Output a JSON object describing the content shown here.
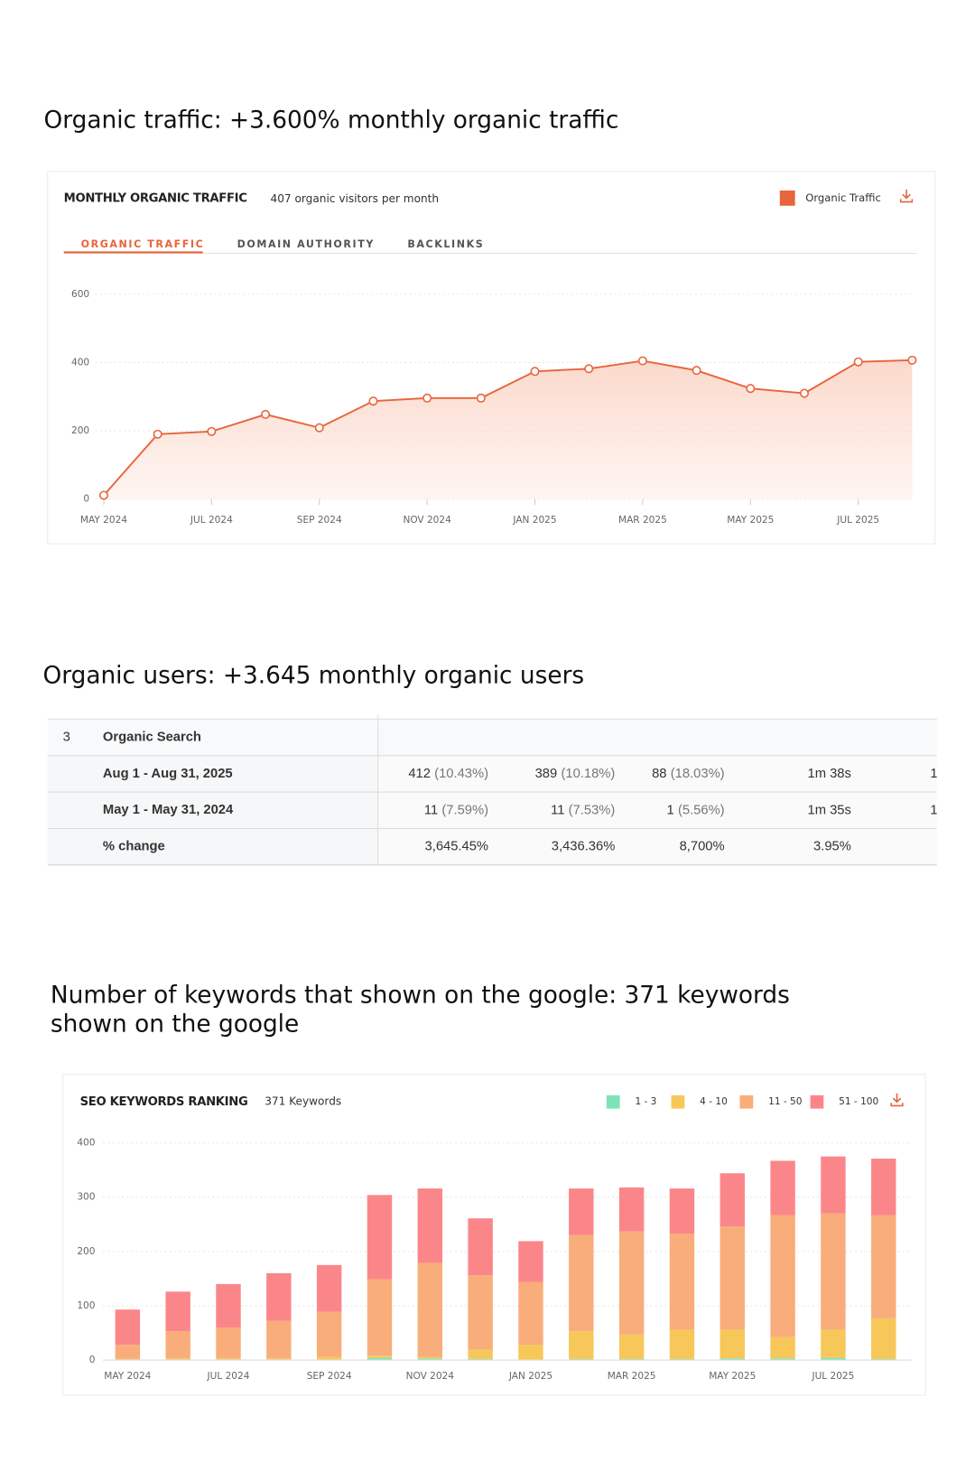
{
  "sections": [
    {
      "heading": [
        "Organic traffic: +3.600% monthly organic traffic"
      ]
    },
    {
      "heading": [
        "Organic users: +3.645 monthly organic users"
      ]
    },
    {
      "heading": [
        "Number of keywords that shown on the google: 371 keywords",
        "shown on the google"
      ]
    }
  ],
  "chart_data": [
    {
      "type": "line",
      "title": "MONTHLY ORGANIC TRAFFIC",
      "subtitle": "407 organic visitors per month",
      "tabs": [
        "ORGANIC TRAFFIC",
        "DOMAIN AUTHORITY",
        "BACKLINKS"
      ],
      "categories": [
        "MAY 2024",
        null,
        "JUL 2024",
        null,
        "SEP 2024",
        null,
        "NOV 2024",
        null,
        "JAN 2025",
        null,
        "MAR 2025",
        null,
        "MAY 2025",
        null,
        "JUL 2025",
        null
      ],
      "series": [
        {
          "name": "Organic Traffic",
          "color": "#e8643a",
          "values": [
            11,
            190,
            198,
            248,
            209,
            287,
            296,
            296,
            374,
            382,
            405,
            377,
            324,
            310,
            402,
            407
          ]
        }
      ],
      "ylim": [
        0,
        600
      ],
      "yticks": [
        0,
        200,
        400,
        600
      ],
      "grid": true,
      "legend": "top-right"
    },
    {
      "type": "stacked-bar",
      "title": "SEO KEYWORDS RANKING",
      "subtitle": "371 Keywords",
      "categories": [
        "MAY 2024",
        null,
        "JUL 2024",
        null,
        "SEP 2024",
        null,
        "NOV 2024",
        null,
        "JAN 2025",
        null,
        "MAR 2025",
        null,
        "MAY 2025",
        null,
        "JUL 2025",
        null
      ],
      "series": [
        {
          "name": "1 - 3",
          "color": "#7ee3b7",
          "values": [
            0,
            0,
            0,
            0,
            1,
            4,
            3,
            2,
            1,
            2,
            2,
            2,
            3,
            3,
            4,
            2
          ]
        },
        {
          "name": "4 - 10",
          "color": "#f7c75a",
          "values": [
            2,
            3,
            3,
            3,
            5,
            4,
            3,
            17,
            27,
            51,
            45,
            54,
            53,
            39,
            52,
            75
          ]
        },
        {
          "name": "11 - 50",
          "color": "#f9ad7a",
          "values": [
            26,
            50,
            57,
            69,
            83,
            141,
            173,
            137,
            116,
            177,
            190,
            177,
            190,
            225,
            214,
            190
          ]
        },
        {
          "name": "51 - 100",
          "color": "#fb868a",
          "values": [
            65,
            73,
            80,
            88,
            86,
            155,
            137,
            105,
            75,
            86,
            81,
            83,
            98,
            100,
            105,
            104
          ]
        }
      ],
      "ylim": [
        0,
        400
      ],
      "yticks": [
        0,
        100,
        200,
        300,
        400
      ],
      "grid": true,
      "legend": "top-right"
    }
  ],
  "table": {
    "header": [
      "3",
      "Organic Search"
    ],
    "rows": [
      {
        "label": "Aug 1 - Aug 31, 2025",
        "cells": [
          [
            "412",
            "(10.43%)"
          ],
          [
            "389",
            "(10.18%)"
          ],
          [
            "88",
            "(18.03%)"
          ],
          [
            "1m 38s"
          ],
          [
            "1"
          ]
        ]
      },
      {
        "label": "May 1 - May 31, 2024",
        "cells": [
          [
            "11",
            "(7.59%)"
          ],
          [
            "11",
            "(7.53%)"
          ],
          [
            "1",
            "(5.56%)"
          ],
          [
            "1m 35s"
          ],
          [
            "1"
          ]
        ]
      },
      {
        "label": "% change",
        "cells": [
          [
            "3,645.45%"
          ],
          [
            "3,436.36%"
          ],
          [
            "8,700%"
          ],
          [
            "3.95%"
          ]
        ]
      }
    ]
  }
}
